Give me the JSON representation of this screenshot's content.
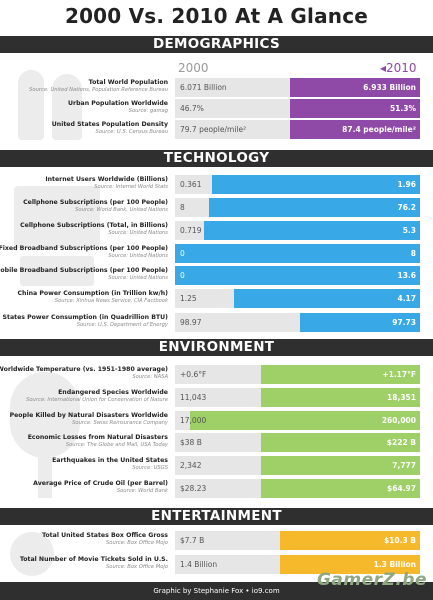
{
  "title": "2000 Vs. 2010 At A Glance",
  "years": {
    "left": "2000",
    "right": "2010",
    "right_arrow": "◂"
  },
  "footer": "Graphic by Stephanie Fox • io9.com",
  "watermark": "GamerZ.be",
  "colors": {
    "demographics": "#8e4aa6",
    "technology": "#38a9e6",
    "environment": "#9fd067",
    "entertainment": "#f6b92b"
  },
  "sections": [
    {
      "name": "DEMOGRAPHICS",
      "color": "#8e4aa6",
      "icon": "people-silhouette-icon",
      "rows": [
        {
          "label": "Total World Population",
          "source": "Source: United Nations, Population Reference Bureau",
          "v2000": "6.071 Billion",
          "v2010": "6.933 Billion",
          "share_2000": 0.47
        },
        {
          "label": "Urban Population Worldwide",
          "source": "Source: gamag",
          "v2000": "46.7%",
          "v2010": "51.3%",
          "share_2000": 0.47
        },
        {
          "label": "United States Population Density",
          "source": "Source: U.S. Census Bureau",
          "v2000": "79.7 people/mile²",
          "v2010": "87.4 people/mile²",
          "share_2000": 0.47
        }
      ]
    },
    {
      "name": "TECHNOLOGY",
      "color": "#38a9e6",
      "icon": "computer-silhouette-icon",
      "rows": [
        {
          "label": "Internet Users Worldwide (Billions)",
          "source": "Source: Internet World Stats",
          "v2000": "0.361",
          "v2010": "1.96",
          "share_2000": 0.15
        },
        {
          "label": "Cellphone Subscriptions (per 100 People)",
          "source": "Source: World Bank, United Nations",
          "v2000": "8",
          "v2010": "76.2",
          "share_2000": 0.14
        },
        {
          "label": "Cellphone Subscriptions (Total, in Billions)",
          "source": "Source: United Nations",
          "v2000": "0.719",
          "v2010": "5.3",
          "share_2000": 0.12
        },
        {
          "label": "Fixed Broadband Subscriptions (per 100 People)",
          "source": "Source: United Nations",
          "v2000": "0",
          "v2010": "8",
          "share_2000": 0
        },
        {
          "label": "Mobile Broadband Subscriptions (per 100 People)",
          "source": "Source: United Nations",
          "v2000": "0",
          "v2010": "13.6",
          "share_2000": 0
        },
        {
          "label": "China Power Consumption (in Trillion kw/h)",
          "source": "Source: Xinhua News Service, CIA Factbook",
          "v2000": "1.25",
          "v2010": "4.17",
          "share_2000": 0.24
        },
        {
          "label": "United States Power Consumption (in Quadrillion BTU)",
          "source": "Source: U.S. Department of Energy",
          "v2000": "98.97",
          "v2010": "97.73",
          "share_2000": 0.51
        }
      ]
    },
    {
      "name": "ENVIRONMENT",
      "color": "#9fd067",
      "icon": "tree-silhouette-icon",
      "rows": [
        {
          "label": "Worldwide Temperature (vs. 1951-1980 average)",
          "source": "Source: NASA",
          "v2000": "+0.6°F",
          "v2010": "+1.17°F",
          "share_2000": 0.35
        },
        {
          "label": "Endangered Species Worldwide",
          "source": "Source: International Union for Conservation of Nature",
          "v2000": "11,043",
          "v2010": "18,351",
          "share_2000": 0.35
        },
        {
          "label": "People Killed by Natural Disasters Worldwide",
          "source": "Source: Swiss Reinsurance Company",
          "v2000": "17,000",
          "v2010": "260,000",
          "share_2000": 0.06
        },
        {
          "label": "Economic Losses from Natural Disasters",
          "source": "Source: The Globe and Mail, USA Today",
          "v2000": "$38 B",
          "v2010": "$222 B",
          "share_2000": 0.35
        },
        {
          "label": "Earthquakes in the United States",
          "source": "Source: USGS",
          "v2000": "2,342",
          "v2010": "7,777",
          "share_2000": 0.35
        },
        {
          "label": "Average Price of Crude Oil (per Barrel)",
          "source": "Source: World Bank",
          "v2000": "$28.23",
          "v2010": "$64.97",
          "share_2000": 0.35
        }
      ]
    },
    {
      "name": "ENTERTAINMENT",
      "color": "#f6b92b",
      "icon": "film-silhouette-icon",
      "rows": [
        {
          "label": "Total United States Box Office Gross",
          "source": "Source: Box Office Mojo",
          "v2000": "$7.7 B",
          "v2010": "$10.3 B",
          "share_2000": 0.43
        },
        {
          "label": "Total Number of Movie Tickets Sold in U.S.",
          "source": "Source: Box Office Mojo",
          "v2000": "1.4 Billion",
          "v2010": "1.3 Billion",
          "share_2000": 0.43
        }
      ]
    }
  ]
}
